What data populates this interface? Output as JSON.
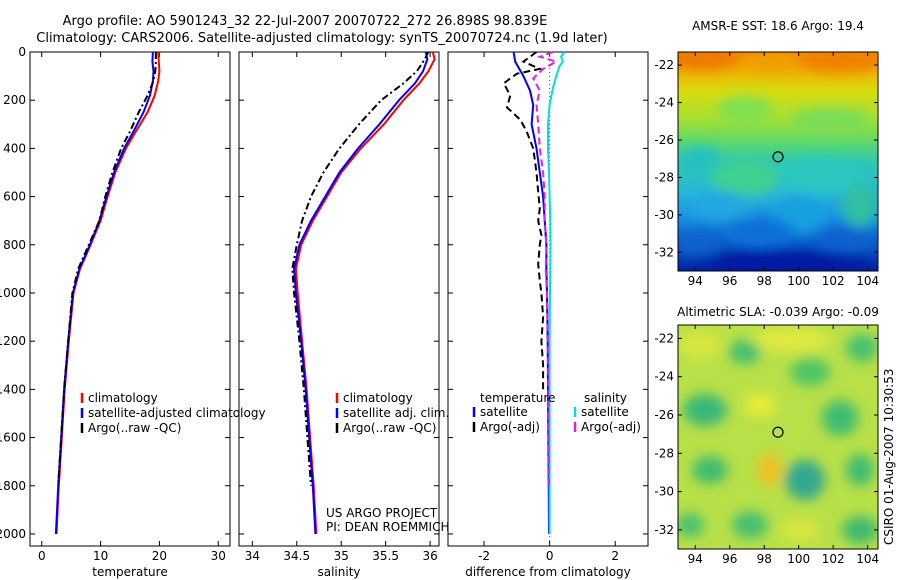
{
  "title_line1": "Argo profile: AO 5901243_32 22-Jul-2007 20070722_272 26.898S 98.839E",
  "title_line2": "Climatology: CARS2006. Satellite-adjusted climatology: synTS_20070724.nc (1.9d later)",
  "side_label": "CSIRO 01-Aug-2007 10:30:53",
  "chart_data": [
    {
      "id": "temp",
      "type": "line",
      "xlabel": "temperature",
      "ylabel": "",
      "xlim": [
        -2,
        32
      ],
      "ylim": [
        2050,
        0
      ],
      "xticks": [
        0,
        10,
        20,
        30
      ],
      "yticks": [
        0,
        200,
        400,
        600,
        800,
        1000,
        1200,
        1400,
        1600,
        1800,
        2000
      ],
      "legend": [
        "climatology",
        "satellite-adjusted climatology",
        "Argo(..raw -QC)"
      ],
      "series": [
        {
          "name": "climatology",
          "color": "#ff0000",
          "dash": "",
          "points": [
            [
              19.8,
              0
            ],
            [
              19.9,
              40
            ],
            [
              20.0,
              80
            ],
            [
              19.8,
              120
            ],
            [
              19.2,
              180
            ],
            [
              18.0,
              250
            ],
            [
              16.0,
              330
            ],
            [
              14.3,
              400
            ],
            [
              12.5,
              500
            ],
            [
              11.2,
              600
            ],
            [
              10.0,
              700
            ],
            [
              8.3,
              800
            ],
            [
              6.5,
              900
            ],
            [
              5.4,
              1000
            ],
            [
              4.6,
              1200
            ],
            [
              3.9,
              1400
            ],
            [
              3.4,
              1600
            ],
            [
              2.9,
              1800
            ],
            [
              2.5,
              2000
            ]
          ]
        },
        {
          "name": "satellite-adjusted climatology",
          "color": "#0000ff",
          "dash": "",
          "points": [
            [
              18.9,
              0
            ],
            [
              18.8,
              40
            ],
            [
              19.0,
              80
            ],
            [
              18.9,
              120
            ],
            [
              18.4,
              180
            ],
            [
              17.3,
              250
            ],
            [
              15.6,
              330
            ],
            [
              14.0,
              400
            ],
            [
              12.3,
              500
            ],
            [
              11.0,
              600
            ],
            [
              9.8,
              700
            ],
            [
              8.2,
              800
            ],
            [
              6.4,
              900
            ],
            [
              5.3,
              1000
            ],
            [
              4.5,
              1200
            ],
            [
              3.8,
              1400
            ],
            [
              3.3,
              1600
            ],
            [
              2.8,
              1800
            ],
            [
              2.4,
              2000
            ]
          ]
        },
        {
          "name": "Argo(..raw -QC)",
          "color": "#000000",
          "dash": "7 3 2 3",
          "points": [
            [
              19.4,
              0
            ],
            [
              19.4,
              40
            ],
            [
              19.3,
              80
            ],
            [
              19.0,
              120
            ],
            [
              18.0,
              180
            ],
            [
              16.5,
              250
            ],
            [
              15.0,
              330
            ],
            [
              13.5,
              400
            ],
            [
              12.0,
              500
            ],
            [
              10.8,
              600
            ],
            [
              9.8,
              700
            ],
            [
              8.0,
              800
            ],
            [
              6.2,
              900
            ],
            [
              5.2,
              1000
            ],
            [
              4.5,
              1200
            ],
            [
              3.8,
              1400
            ],
            [
              3.3,
              1600
            ],
            [
              2.8,
              1800
            ]
          ]
        }
      ]
    },
    {
      "id": "sal",
      "type": "line",
      "xlabel": "salinity",
      "ylabel": "",
      "xlim": [
        33.85,
        36.1
      ],
      "ylim": [
        2050,
        0
      ],
      "xticks": [
        34,
        34.5,
        35,
        35.5,
        36
      ],
      "yticks": [
        0,
        200,
        400,
        600,
        800,
        1000,
        1200,
        1400,
        1600,
        1800,
        2000
      ],
      "legend": [
        "climatology",
        "satellite adj. clim.",
        "Argo(..raw -QC)"
      ],
      "annotation": [
        "US ARGO PROJECT",
        "PI: DEAN ROEMMICH"
      ],
      "series": [
        {
          "name": "climatology",
          "color": "#ff0000",
          "dash": "",
          "points": [
            [
              36.03,
              0
            ],
            [
              36.05,
              30
            ],
            [
              35.98,
              80
            ],
            [
              35.88,
              130
            ],
            [
              35.7,
              200
            ],
            [
              35.48,
              300
            ],
            [
              35.22,
              400
            ],
            [
              35.0,
              500
            ],
            [
              34.84,
              600
            ],
            [
              34.68,
              700
            ],
            [
              34.55,
              800
            ],
            [
              34.49,
              900
            ],
            [
              34.51,
              1000
            ],
            [
              34.56,
              1200
            ],
            [
              34.61,
              1400
            ],
            [
              34.65,
              1600
            ],
            [
              34.69,
              1800
            ],
            [
              34.72,
              2000
            ]
          ]
        },
        {
          "name": "satellite adj. clim.",
          "color": "#0000ff",
          "dash": "",
          "points": [
            [
              35.95,
              0
            ],
            [
              35.97,
              30
            ],
            [
              35.92,
              80
            ],
            [
              35.83,
              130
            ],
            [
              35.65,
              200
            ],
            [
              35.43,
              300
            ],
            [
              35.19,
              400
            ],
            [
              34.98,
              500
            ],
            [
              34.82,
              600
            ],
            [
              34.66,
              700
            ],
            [
              34.53,
              800
            ],
            [
              34.47,
              900
            ],
            [
              34.49,
              1000
            ],
            [
              34.55,
              1200
            ],
            [
              34.6,
              1400
            ],
            [
              34.64,
              1600
            ],
            [
              34.68,
              1800
            ],
            [
              34.71,
              2000
            ]
          ]
        },
        {
          "name": "Argo(..raw -QC)",
          "color": "#000000",
          "dash": "7 3 2 3",
          "points": [
            [
              35.98,
              0
            ],
            [
              35.94,
              30
            ],
            [
              35.85,
              80
            ],
            [
              35.7,
              130
            ],
            [
              35.45,
              200
            ],
            [
              35.2,
              300
            ],
            [
              34.98,
              400
            ],
            [
              34.8,
              500
            ],
            [
              34.66,
              600
            ],
            [
              34.56,
              700
            ],
            [
              34.5,
              800
            ],
            [
              34.45,
              900
            ],
            [
              34.47,
              1000
            ],
            [
              34.53,
              1200
            ],
            [
              34.58,
              1400
            ],
            [
              34.62,
              1600
            ],
            [
              34.66,
              1800
            ]
          ]
        }
      ]
    },
    {
      "id": "diff",
      "type": "line",
      "xlabel": "difference from climatology",
      "ylabel": "",
      "xlim": [
        -3.1,
        3.0
      ],
      "ylim": [
        2050,
        0
      ],
      "xticks": [
        -2,
        0,
        2
      ],
      "yticks": [
        0,
        200,
        400,
        600,
        800,
        1000,
        1200,
        1400,
        1600,
        1800,
        2000
      ],
      "legend_temperature_title": "temperature",
      "legend_salinity_title": "salinity",
      "legend_temperature": [
        "satellite",
        "Argo(-adj)"
      ],
      "legend_salinity": [
        "satellite",
        "Argo(-adj)"
      ],
      "series": [
        {
          "name": "temperature satellite",
          "color": "#0000ff",
          "dash": "",
          "points": [
            [
              -1.1,
              0
            ],
            [
              -1.05,
              40
            ],
            [
              -0.8,
              100
            ],
            [
              -0.6,
              160
            ],
            [
              -0.5,
              220
            ],
            [
              -0.55,
              300
            ],
            [
              -0.4,
              400
            ],
            [
              -0.3,
              500
            ],
            [
              -0.2,
              600
            ],
            [
              -0.15,
              700
            ],
            [
              -0.1,
              800
            ],
            [
              -0.1,
              900
            ],
            [
              -0.08,
              1000
            ],
            [
              -0.06,
              1200
            ],
            [
              -0.05,
              1400
            ],
            [
              -0.04,
              1600
            ],
            [
              -0.03,
              1800
            ],
            [
              -0.02,
              2000
            ]
          ]
        },
        {
          "name": "temperature Argo(-adj)",
          "color": "#000000",
          "dash": "7 4",
          "points": [
            [
              -0.4,
              0
            ],
            [
              -0.8,
              40
            ],
            [
              -0.3,
              70
            ],
            [
              -1.0,
              90
            ],
            [
              -1.4,
              130
            ],
            [
              -1.2,
              180
            ],
            [
              -1.3,
              230
            ],
            [
              -0.9,
              280
            ],
            [
              -0.7,
              330
            ],
            [
              -0.5,
              400
            ],
            [
              -0.45,
              450
            ],
            [
              -0.4,
              500
            ],
            [
              -0.35,
              580
            ],
            [
              -0.3,
              650
            ],
            [
              -0.35,
              700
            ],
            [
              -0.25,
              760
            ],
            [
              -0.3,
              800
            ],
            [
              -0.35,
              880
            ],
            [
              -0.3,
              950
            ],
            [
              -0.25,
              1000
            ],
            [
              -0.2,
              1100
            ],
            [
              -0.25,
              1200
            ],
            [
              -0.2,
              1300
            ],
            [
              -0.2,
              1400
            ]
          ]
        },
        {
          "name": "salinity satellite",
          "color": "#00e0e0",
          "dash": "",
          "points": [
            [
              0.45,
              0
            ],
            [
              0.35,
              20
            ],
            [
              0.4,
              40
            ],
            [
              0.3,
              60
            ],
            [
              0.2,
              100
            ],
            [
              0.1,
              150
            ],
            [
              0.0,
              220
            ],
            [
              -0.05,
              300
            ],
            [
              -0.05,
              400
            ],
            [
              -0.02,
              500
            ],
            [
              0.0,
              600
            ],
            [
              0.02,
              700
            ],
            [
              0.03,
              800
            ],
            [
              0.02,
              900
            ],
            [
              0.01,
              1000
            ],
            [
              0.0,
              1200
            ],
            [
              0.0,
              1400
            ],
            [
              0.0,
              1600
            ],
            [
              0.0,
              1800
            ],
            [
              0.0,
              2000
            ]
          ]
        },
        {
          "name": "salinity Argo(-adj)",
          "color": "#e020e0",
          "dash": "7 4",
          "points": [
            [
              0.1,
              0
            ],
            [
              -0.3,
              20
            ],
            [
              0.2,
              40
            ],
            [
              -0.2,
              70
            ],
            [
              -0.5,
              110
            ],
            [
              -0.3,
              160
            ],
            [
              -0.4,
              220
            ],
            [
              -0.35,
              300
            ],
            [
              -0.3,
              400
            ],
            [
              -0.2,
              500
            ],
            [
              -0.15,
              600
            ],
            [
              -0.15,
              700
            ],
            [
              -0.1,
              800
            ],
            [
              -0.12,
              900
            ],
            [
              -0.08,
              1000
            ],
            [
              -0.05,
              1200
            ],
            [
              -0.04,
              1400
            ],
            [
              -0.03,
              1600
            ],
            [
              -0.02,
              1800
            ]
          ]
        }
      ]
    },
    {
      "id": "sst",
      "type": "heatmap",
      "title": "AMSR-E SST: 18.6 Argo: 19.4",
      "xlim": [
        93,
        104.6
      ],
      "ylim": [
        -33,
        -21.3
      ],
      "xticks": [
        94,
        96,
        98,
        100,
        102,
        104
      ],
      "yticks": [
        -22,
        -24,
        -26,
        -28,
        -30,
        -32
      ],
      "marker": [
        98.8,
        -26.9
      ]
    },
    {
      "id": "sla",
      "type": "heatmap",
      "title": "Altimetric SLA: -0.039 Argo: -0.09",
      "xlim": [
        93,
        104.6
      ],
      "ylim": [
        -33,
        -21.3
      ],
      "xticks": [
        94,
        96,
        98,
        100,
        102,
        104
      ],
      "yticks": [
        -22,
        -24,
        -26,
        -28,
        -30,
        -32
      ],
      "marker": [
        98.8,
        -26.9
      ]
    }
  ]
}
